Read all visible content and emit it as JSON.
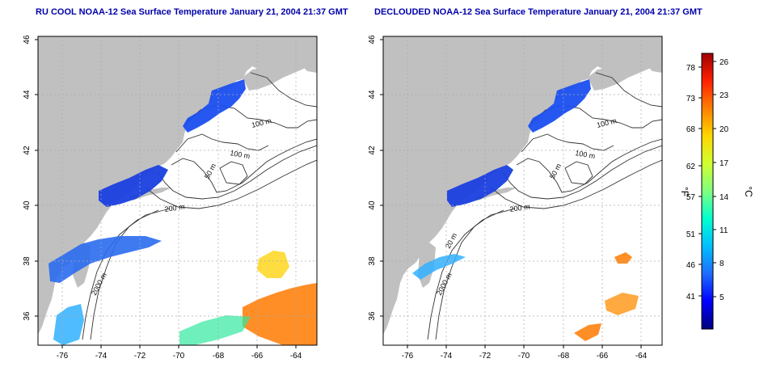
{
  "panels": [
    {
      "title": "RU COOL NOAA-12 Sea Surface Temperature January 21, 2004 21:37 GMT",
      "contour_labels": [
        "100 m",
        "100 m",
        "50 m",
        "200 m",
        "2000 m"
      ]
    },
    {
      "title": "DECLOUDED NOAA-12 Sea Surface Temperature January 21, 2004 21:37 GMT",
      "contour_labels": [
        "100 m",
        "100 m",
        "50 m",
        "200 m",
        "20 m",
        "2000 m"
      ]
    }
  ],
  "axes": {
    "lon_ticks": [
      "-76",
      "-74",
      "-72",
      "-70",
      "-68",
      "-66",
      "-64"
    ],
    "lat_ticks": [
      "36",
      "38",
      "40",
      "42",
      "44",
      "46"
    ]
  },
  "colorbar": {
    "f_label": "°F",
    "c_label": "°C",
    "f_ticks": [
      "78",
      "73",
      "68",
      "62",
      "57",
      "51",
      "46",
      "41"
    ],
    "c_ticks": [
      "26",
      "23",
      "20",
      "17",
      "14",
      "11",
      "8",
      "5"
    ],
    "colors": [
      "#00007f",
      "#0000ff",
      "#1e6cff",
      "#00bfff",
      "#00ffd0",
      "#7fff7f",
      "#d0ff30",
      "#ffd700",
      "#ff7f00",
      "#ff2000",
      "#a00000"
    ]
  },
  "colors": {
    "land": "#c0c0c0",
    "ocean": "#ffffff",
    "cold_water": "#1a4ff0",
    "contour": "#333333"
  }
}
